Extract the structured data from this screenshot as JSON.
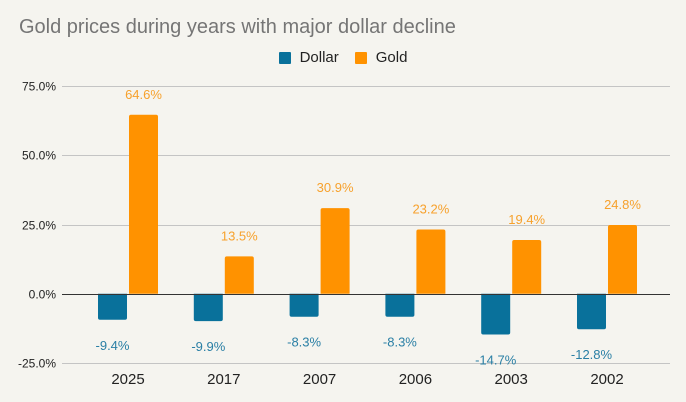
{
  "chart_data": {
    "type": "bar",
    "title": "Gold prices during years with major dollar decline",
    "xlabel": "",
    "ylabel": "",
    "categories": [
      "2025",
      "2017",
      "2007",
      "2006",
      "2003",
      "2002"
    ],
    "series": [
      {
        "name": "Dollar",
        "color": "#09719b",
        "values": [
          -9.4,
          -9.9,
          -8.3,
          -8.3,
          -14.7,
          -12.8
        ],
        "labels": [
          "-9.4%",
          "-9.9%",
          "-8.3%",
          "-8.3%",
          "-14.7%",
          "-12.8%"
        ]
      },
      {
        "name": "Gold",
        "color": "#ff9200",
        "values": [
          64.6,
          13.5,
          30.9,
          23.2,
          19.4,
          24.8
        ],
        "labels": [
          "64.6%",
          "13.5%",
          "30.9%",
          "23.2%",
          "19.4%",
          "24.8%"
        ]
      }
    ],
    "ylim": [
      -25,
      75
    ],
    "yticks": [
      75,
      50,
      25,
      0,
      -25
    ],
    "ytick_labels": [
      "75.0%",
      "50.0%",
      "25.0%",
      "0.0%",
      "-25.0%"
    ],
    "grid": true,
    "legend_position": "top-center"
  }
}
